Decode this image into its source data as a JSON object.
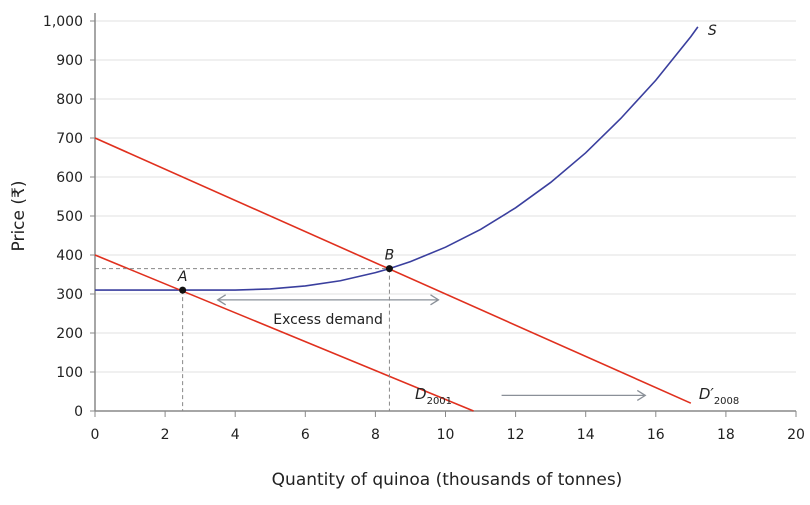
{
  "chart_data": {
    "type": "line",
    "xlabel": "Quantity of quinoa (thousands of tonnes)",
    "ylabel": "Price (₹)",
    "xlim": [
      0,
      20
    ],
    "ylim": [
      0,
      1000
    ],
    "xticks": [
      "0",
      "2",
      "4",
      "6",
      "8",
      "10",
      "12",
      "14",
      "16",
      "18",
      "20"
    ],
    "yticks": [
      "0",
      "100",
      "200",
      "300",
      "400",
      "500",
      "600",
      "700",
      "800",
      "900",
      "1,000"
    ],
    "grid": "horizontal",
    "series": [
      {
        "name": "S",
        "label": "S",
        "color": "#3a3f9e",
        "x": [
          0,
          1,
          2,
          3,
          3.5,
          4,
          5,
          6,
          7,
          8,
          8.4,
          9,
          10,
          11,
          12,
          13,
          14,
          15,
          16,
          17,
          17.2
        ],
        "y": [
          310,
          310,
          310,
          310,
          310,
          310.2,
          313,
          320.7,
          334,
          354.8,
          365,
          383,
          420,
          465.6,
          521,
          586,
          662,
          750,
          848,
          960,
          985
        ]
      },
      {
        "name": "D2001",
        "label": "D",
        "sub": "2001",
        "color": "#e0301e",
        "x": [
          0,
          10.8
        ],
        "y": [
          400,
          0
        ]
      },
      {
        "name": "D'2008",
        "label": "D′",
        "sub": "2008",
        "color": "#e0301e",
        "x": [
          0,
          17
        ],
        "y": [
          700,
          20
        ]
      }
    ],
    "points": [
      {
        "label": "A",
        "x": 2.5,
        "y": 310
      },
      {
        "label": "B",
        "x": 8.4,
        "y": 365
      }
    ],
    "annotations": {
      "excess_demand": "Excess demand",
      "excess_from": 3.5,
      "excess_to": 9.8,
      "excess_y": 285,
      "shift_from": 11.6,
      "shift_to": 15.7,
      "shift_y": 40
    }
  }
}
